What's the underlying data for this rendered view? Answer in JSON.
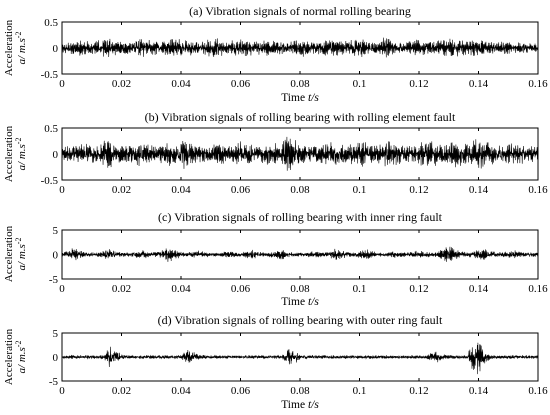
{
  "chart_data": [
    {
      "type": "line",
      "title": "(a) Vibration signals of normal rolling bearing",
      "xlabel": {
        "main": "Time ",
        "unit": "t/s"
      },
      "ylabel": {
        "line1": "Acceleration",
        "unit": "a/ m.s",
        "exp": "-2"
      },
      "xlim": [
        0,
        0.16
      ],
      "ylim": [
        -0.5,
        0.5
      ],
      "xticks": [
        "0",
        "0.02",
        "0.04",
        "0.06",
        "0.08",
        "0.1",
        "0.12",
        "0.14",
        "0.16"
      ],
      "yticks": [
        "-0.5",
        "0",
        "0.5"
      ],
      "series": [
        {
          "color": "#000000",
          "sample_step": 0.002,
          "x_range": [
            0,
            0.16
          ],
          "envelope": [
            0.1,
            0.12,
            0.15,
            0.17,
            0.14,
            0.12,
            0.15,
            0.18,
            0.2,
            0.17,
            0.14,
            0.13,
            0.14,
            0.17,
            0.19,
            0.16,
            0.13,
            0.15,
            0.18,
            0.21,
            0.19,
            0.16,
            0.14,
            0.13,
            0.15,
            0.18,
            0.2,
            0.17,
            0.14,
            0.16,
            0.19,
            0.17,
            0.15,
            0.14,
            0.16,
            0.18,
            0.15,
            0.13,
            0.12,
            0.14,
            0.17,
            0.19,
            0.16,
            0.14,
            0.15,
            0.17,
            0.16,
            0.14,
            0.15,
            0.18,
            0.19,
            0.16,
            0.13,
            0.14,
            0.22,
            0.18,
            0.14,
            0.12,
            0.14,
            0.16,
            0.18,
            0.15,
            0.13,
            0.15,
            0.19,
            0.21,
            0.18,
            0.15,
            0.14,
            0.17,
            0.19,
            0.16,
            0.12,
            0.11,
            0.13,
            0.12,
            0.1,
            0.11,
            0.12,
            0.1,
            0.09
          ]
        }
      ]
    },
    {
      "type": "line",
      "title": "(b) Vibration signals of rolling bearing with rolling element fault",
      "xlabel": {
        "main": "Time ",
        "unit": "t/s"
      },
      "ylabel": {
        "line1": "Acceleration",
        "unit": "a/ m.s",
        "exp": "-2"
      },
      "xlim": [
        0,
        0.16
      ],
      "ylim": [
        -0.5,
        0.5
      ],
      "xticks": [
        "0",
        "0.02",
        "0.04",
        "0.06",
        "0.08",
        "0.1",
        "0.12",
        "0.14",
        "0.16"
      ],
      "yticks": [
        "-0.5",
        "0",
        "0.5"
      ],
      "series": [
        {
          "color": "#000000",
          "sample_step": 0.002,
          "x_range": [
            0,
            0.16
          ],
          "envelope": [
            0.14,
            0.16,
            0.18,
            0.2,
            0.22,
            0.18,
            0.16,
            0.35,
            0.3,
            0.2,
            0.17,
            0.18,
            0.22,
            0.26,
            0.21,
            0.18,
            0.16,
            0.19,
            0.24,
            0.22,
            0.3,
            0.28,
            0.2,
            0.17,
            0.16,
            0.19,
            0.22,
            0.2,
            0.18,
            0.2,
            0.25,
            0.22,
            0.18,
            0.17,
            0.2,
            0.24,
            0.22,
            0.2,
            0.42,
            0.32,
            0.22,
            0.18,
            0.16,
            0.18,
            0.22,
            0.26,
            0.22,
            0.19,
            0.18,
            0.22,
            0.27,
            0.24,
            0.2,
            0.18,
            0.22,
            0.28,
            0.24,
            0.2,
            0.17,
            0.19,
            0.24,
            0.3,
            0.26,
            0.22,
            0.2,
            0.26,
            0.3,
            0.24,
            0.2,
            0.28,
            0.36,
            0.3,
            0.22,
            0.18,
            0.17,
            0.2,
            0.22,
            0.2,
            0.18,
            0.16,
            0.15
          ]
        }
      ]
    },
    {
      "type": "line",
      "title": "(c) Vibration signals of rolling bearing with inner ring fault",
      "xlabel": {
        "main": "Time ",
        "unit": "t/s"
      },
      "ylabel": {
        "line1": "Acceleration",
        "unit": "a/ m.s",
        "exp": "-2"
      },
      "xlim": [
        0,
        0.16
      ],
      "ylim": [
        -5,
        5
      ],
      "xticks": [
        "0",
        "0.02",
        "0.04",
        "0.06",
        "0.08",
        "0.1",
        "0.12",
        "0.14",
        "0.16"
      ],
      "yticks": [
        "-5",
        "0",
        "5"
      ],
      "series": [
        {
          "color": "#000000",
          "sample_step": 0.002,
          "x_range": [
            0,
            0.16
          ],
          "envelope": [
            0.5,
            0.7,
            1.6,
            0.9,
            0.6,
            0.5,
            0.5,
            0.8,
            1.2,
            0.7,
            0.5,
            0.4,
            0.6,
            1.0,
            0.8,
            0.5,
            0.6,
            1.1,
            1.7,
            1.0,
            0.6,
            0.5,
            0.7,
            0.9,
            0.6,
            0.5,
            0.4,
            0.5,
            0.8,
            0.6,
            0.5,
            0.7,
            1.0,
            0.7,
            0.5,
            0.6,
            0.9,
            1.2,
            0.7,
            0.5,
            0.4,
            0.5,
            0.7,
            0.6,
            0.5,
            0.6,
            1.5,
            1.0,
            0.6,
            0.5,
            1.0,
            1.3,
            0.8,
            0.5,
            0.4,
            0.5,
            0.7,
            0.6,
            0.5,
            0.6,
            0.9,
            0.7,
            0.5,
            0.6,
            1.2,
            2.4,
            1.4,
            0.8,
            0.6,
            0.6,
            1.0,
            1.2,
            0.8,
            0.6,
            0.5,
            0.7,
            0.9,
            0.7,
            0.5,
            0.5,
            0.5
          ]
        }
      ]
    },
    {
      "type": "line",
      "title": "(d) Vibration signals of rolling bearing with outer ring fault",
      "xlabel": {
        "main": "Time ",
        "unit": "t/s"
      },
      "ylabel": {
        "line1": "Acceleration",
        "unit": "a/ m.s",
        "exp": "-2"
      },
      "xlim": [
        0,
        0.16
      ],
      "ylim": [
        -5,
        5
      ],
      "xticks": [
        "0",
        "0.02",
        "0.04",
        "0.06",
        "0.08",
        "0.1",
        "0.12",
        "0.14",
        "0.16"
      ],
      "yticks": [
        "-5",
        "0",
        "5"
      ],
      "series": [
        {
          "color": "#000000",
          "sample_step": 0.002,
          "x_range": [
            0,
            0.16
          ],
          "envelope": [
            0.4,
            0.4,
            0.5,
            0.4,
            0.4,
            0.4,
            0.4,
            0.4,
            2.8,
            1.6,
            0.6,
            0.4,
            0.4,
            0.4,
            0.4,
            0.4,
            0.4,
            0.4,
            0.4,
            0.4,
            0.4,
            1.8,
            1.2,
            0.5,
            0.4,
            0.4,
            0.4,
            0.4,
            0.4,
            0.4,
            0.4,
            0.4,
            0.4,
            0.4,
            0.4,
            0.4,
            0.4,
            0.4,
            2.2,
            1.6,
            0.5,
            0.4,
            0.4,
            0.4,
            0.4,
            0.4,
            0.4,
            0.4,
            0.4,
            0.4,
            0.4,
            0.4,
            0.4,
            0.4,
            0.4,
            0.4,
            0.4,
            0.4,
            0.4,
            0.4,
            0.4,
            0.4,
            1.0,
            1.2,
            0.7,
            0.5,
            0.4,
            0.4,
            0.4,
            3.2,
            3.8,
            1.4,
            0.6,
            0.4,
            0.4,
            0.4,
            0.4,
            0.4,
            0.4,
            0.4,
            0.4
          ]
        }
      ]
    }
  ]
}
